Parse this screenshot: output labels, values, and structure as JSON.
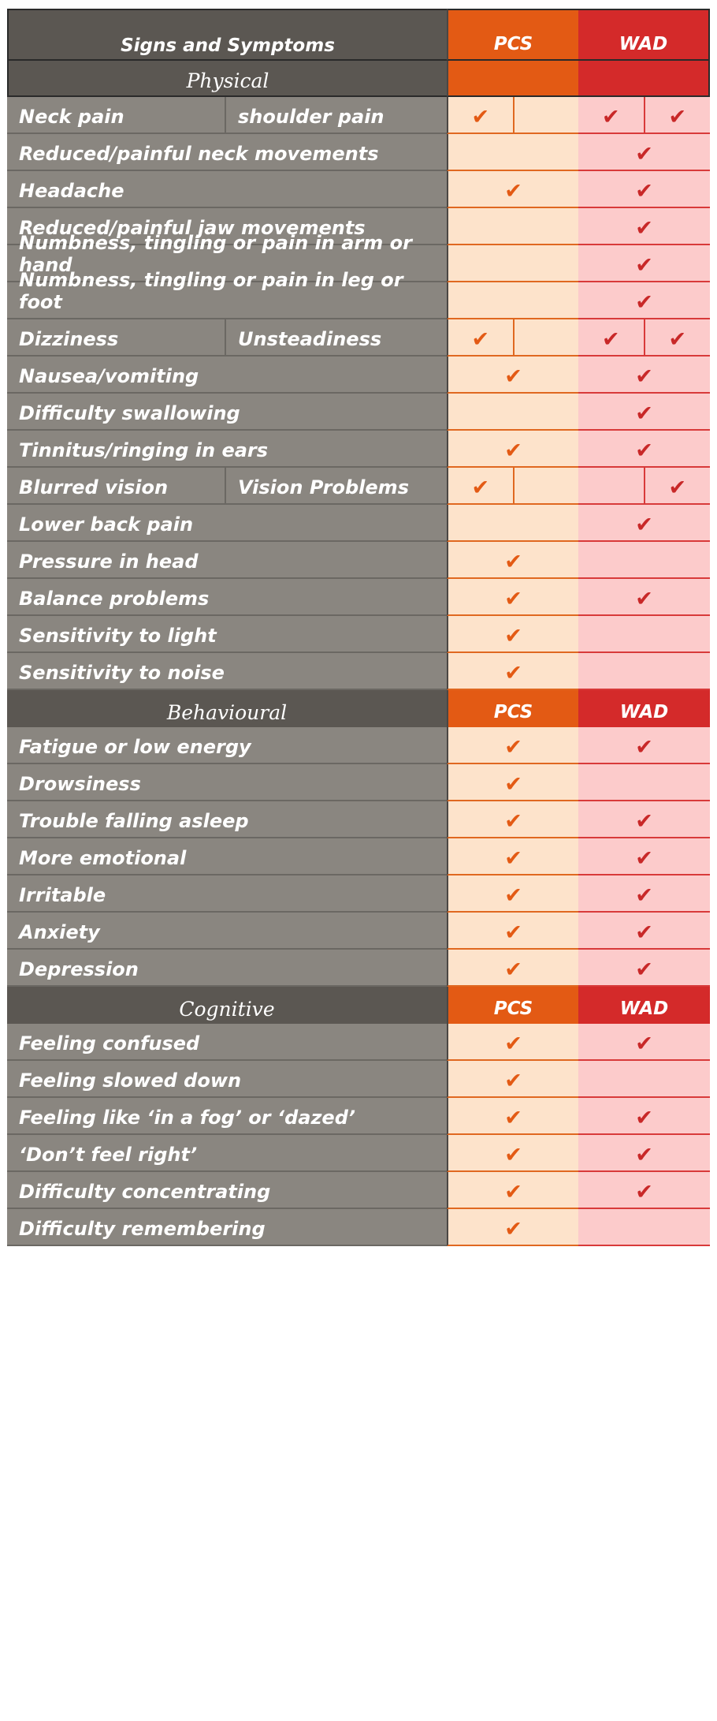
{
  "table": {
    "title": "Signs and Symptoms",
    "col_pcs": "PCS",
    "col_wad": "WAD",
    "check_mark": "✔",
    "sections": [
      {
        "name": "Physical",
        "header_pcs": "",
        "header_wad": "",
        "rows": [
          {
            "label": "Neck pain",
            "label2": "shoulder pain",
            "pcs": [
              true,
              false
            ],
            "wad": [
              true,
              true
            ]
          },
          {
            "label": "Reduced/painful neck movements",
            "pcs": [
              false
            ],
            "wad": [
              true
            ]
          },
          {
            "label": "Headache",
            "pcs": [
              true
            ],
            "wad": [
              true
            ]
          },
          {
            "label": "Reduced/painful jaw movements",
            "pcs": [
              false
            ],
            "wad": [
              true
            ]
          },
          {
            "label": "Numbness, tingling or pain in arm or hand",
            "pcs": [
              false
            ],
            "wad": [
              true
            ]
          },
          {
            "label": "Numbness, tingling or pain in leg or foot",
            "pcs": [
              false
            ],
            "wad": [
              true
            ]
          },
          {
            "label": "Dizziness",
            "label2": "Unsteadiness",
            "pcs": [
              true,
              false
            ],
            "wad": [
              true,
              true
            ]
          },
          {
            "label": "Nausea/vomiting",
            "pcs": [
              true
            ],
            "wad": [
              true
            ]
          },
          {
            "label": "Difficulty swallowing",
            "pcs": [
              false
            ],
            "wad": [
              true
            ]
          },
          {
            "label": "Tinnitus/ringing in ears",
            "pcs": [
              true
            ],
            "wad": [
              true
            ]
          },
          {
            "label": "Blurred vision",
            "label2": "Vision Problems",
            "pcs": [
              true,
              false
            ],
            "wad": [
              false,
              true
            ]
          },
          {
            "label": "Lower back pain",
            "pcs": [
              false
            ],
            "wad": [
              true
            ]
          },
          {
            "label": "Pressure in head",
            "pcs": [
              true
            ],
            "wad": [
              false
            ]
          },
          {
            "label": "Balance problems",
            "pcs": [
              true
            ],
            "wad": [
              true
            ]
          },
          {
            "label": "Sensitivity to light",
            "pcs": [
              true
            ],
            "wad": [
              false
            ]
          },
          {
            "label": "Sensitivity to noise",
            "pcs": [
              true
            ],
            "wad": [
              false
            ]
          }
        ]
      },
      {
        "name": "Behavioural",
        "header_pcs": "PCS",
        "header_wad": "WAD",
        "rows": [
          {
            "label": "Fatigue or low energy",
            "pcs": [
              true
            ],
            "wad": [
              true
            ]
          },
          {
            "label": "Drowsiness",
            "pcs": [
              true
            ],
            "wad": [
              false
            ]
          },
          {
            "label": "Trouble falling asleep",
            "pcs": [
              true
            ],
            "wad": [
              true
            ]
          },
          {
            "label": "More emotional",
            "pcs": [
              true
            ],
            "wad": [
              true
            ]
          },
          {
            "label": "Irritable",
            "pcs": [
              true
            ],
            "wad": [
              true
            ]
          },
          {
            "label": "Anxiety",
            "pcs": [
              true
            ],
            "wad": [
              true
            ]
          },
          {
            "label": "Depression",
            "pcs": [
              true
            ],
            "wad": [
              true
            ]
          }
        ]
      },
      {
        "name": "Cognitive",
        "header_pcs": "PCS",
        "header_wad": "WAD",
        "rows": [
          {
            "label": "Feeling confused",
            "pcs": [
              true
            ],
            "wad": [
              true
            ]
          },
          {
            "label": "Feeling slowed down",
            "pcs": [
              true
            ],
            "wad": [
              false
            ]
          },
          {
            "label": "Feeling like ‘in a fog’ or ‘dazed’",
            "pcs": [
              true
            ],
            "wad": [
              true
            ]
          },
          {
            "label": "‘Don’t feel right’",
            "pcs": [
              true
            ],
            "wad": [
              true
            ]
          },
          {
            "label": "Difficulty concentrating",
            "pcs": [
              true
            ],
            "wad": [
              true
            ]
          },
          {
            "label": "Difficulty remembering",
            "pcs": [
              true
            ],
            "wad": [
              false
            ]
          }
        ]
      }
    ]
  },
  "colors": {
    "pcs_accent": "#e35a14",
    "wad_accent": "#d42a2a",
    "label_bg": "#8a8680",
    "header_bg": "#5b5752",
    "pcs_fill": "#fde3cb",
    "wad_fill": "#fccbcb"
  }
}
